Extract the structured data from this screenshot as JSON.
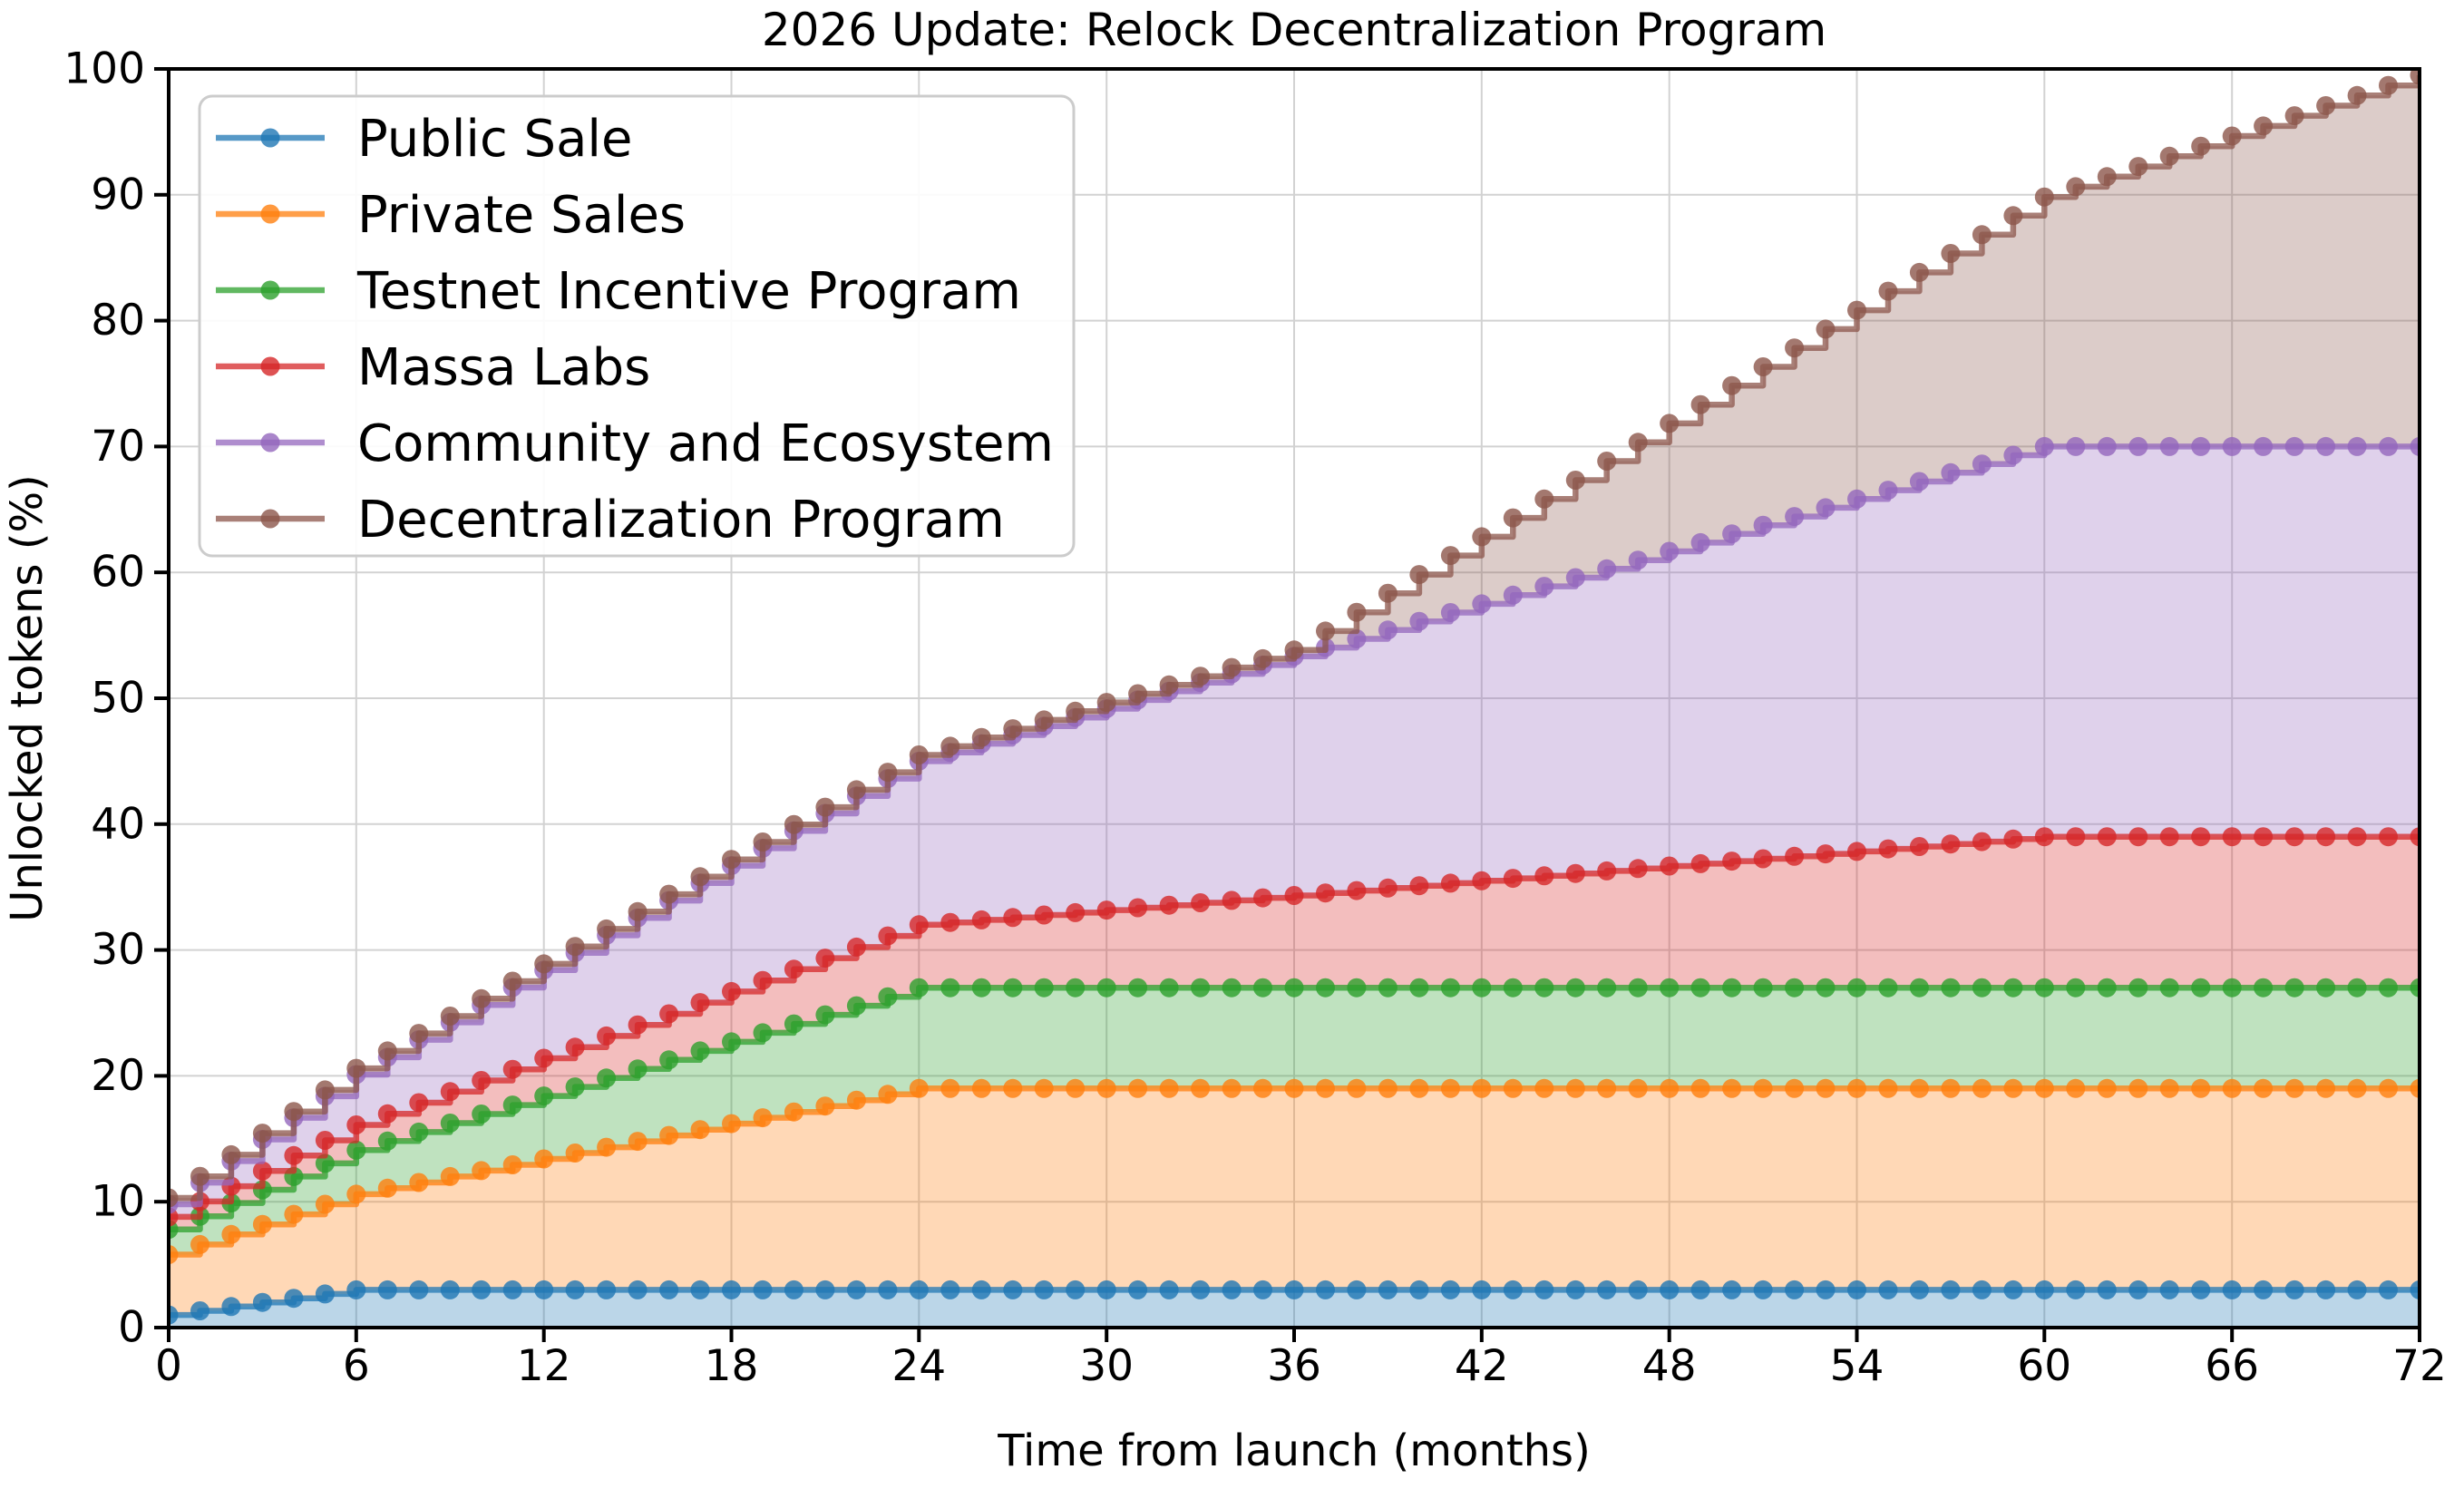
{
  "title": "2026 Update: Relock Decentralization Program",
  "chart_data": {
    "type": "area",
    "stacked": true,
    "step": "post",
    "title": "2026 Update: Relock Decentralization Program",
    "xlabel": "Time from launch (months)",
    "ylabel": "Unlocked tokens (%)",
    "xlim": [
      0,
      72
    ],
    "ylim": [
      0,
      100
    ],
    "xticks": [
      0,
      6,
      12,
      18,
      24,
      30,
      36,
      42,
      48,
      54,
      60,
      66,
      72
    ],
    "yticks": [
      0,
      10,
      20,
      30,
      40,
      50,
      60,
      70,
      80,
      90,
      100
    ],
    "grid": true,
    "legend_position": "upper left",
    "values_note": "cumulative stacked percent of total supply, one step per month",
    "x": [
      0,
      1,
      2,
      3,
      4,
      5,
      6,
      7,
      8,
      9,
      10,
      11,
      12,
      13,
      14,
      15,
      16,
      17,
      18,
      19,
      20,
      21,
      22,
      23,
      24,
      25,
      26,
      27,
      28,
      29,
      30,
      31,
      32,
      33,
      34,
      35,
      36,
      37,
      38,
      39,
      40,
      41,
      42,
      43,
      44,
      45,
      46,
      47,
      48,
      49,
      50,
      51,
      52,
      53,
      54,
      55,
      56,
      57,
      58,
      59,
      60,
      61,
      62,
      63,
      64,
      65,
      66,
      67,
      68,
      69,
      70,
      71,
      72
    ],
    "series": [
      {
        "name": "Public Sale",
        "color": "#1f77b4",
        "cumulative": [
          1.0,
          1.33,
          1.67,
          2.0,
          2.33,
          2.67,
          3.0,
          3.0,
          3.0,
          3.0,
          3.0,
          3.0,
          3.0,
          3.0,
          3.0,
          3.0,
          3.0,
          3.0,
          3.0,
          3.0,
          3.0,
          3.0,
          3.0,
          3.0,
          3.0,
          3.0,
          3.0,
          3.0,
          3.0,
          3.0,
          3.0,
          3.0,
          3.0,
          3.0,
          3.0,
          3.0,
          3.0,
          3.0,
          3.0,
          3.0,
          3.0,
          3.0,
          3.0,
          3.0,
          3.0,
          3.0,
          3.0,
          3.0,
          3.0,
          3.0,
          3.0,
          3.0,
          3.0,
          3.0,
          3.0,
          3.0,
          3.0,
          3.0,
          3.0,
          3.0,
          3.0,
          3.0,
          3.0,
          3.0,
          3.0,
          3.0,
          3.0,
          3.0,
          3.0,
          3.0,
          3.0,
          3.0,
          3.0
        ]
      },
      {
        "name": "Private Sales",
        "color": "#ff7f0e",
        "cumulative": [
          5.8,
          6.6,
          7.4,
          8.2,
          9.0,
          9.8,
          10.6,
          11.07,
          11.53,
          12.0,
          12.47,
          12.93,
          13.4,
          13.87,
          14.33,
          14.8,
          15.27,
          15.73,
          16.2,
          16.67,
          17.13,
          17.6,
          18.07,
          18.53,
          19.0,
          19.0,
          19.0,
          19.0,
          19.0,
          19.0,
          19.0,
          19.0,
          19.0,
          19.0,
          19.0,
          19.0,
          19.0,
          19.0,
          19.0,
          19.0,
          19.0,
          19.0,
          19.0,
          19.0,
          19.0,
          19.0,
          19.0,
          19.0,
          19.0,
          19.0,
          19.0,
          19.0,
          19.0,
          19.0,
          19.0,
          19.0,
          19.0,
          19.0,
          19.0,
          19.0,
          19.0,
          19.0,
          19.0,
          19.0,
          19.0,
          19.0,
          19.0,
          19.0,
          19.0,
          19.0,
          19.0,
          19.0,
          19.0
        ]
      },
      {
        "name": "Testnet Incentive Program",
        "color": "#2ca02c",
        "cumulative": [
          7.8,
          8.85,
          9.9,
          10.95,
          12.0,
          13.05,
          14.1,
          14.82,
          15.53,
          16.25,
          16.97,
          17.68,
          18.4,
          19.12,
          19.83,
          20.55,
          21.27,
          21.98,
          22.7,
          23.42,
          24.13,
          24.85,
          25.57,
          26.28,
          27.0,
          27.0,
          27.0,
          27.0,
          27.0,
          27.0,
          27.0,
          27.0,
          27.0,
          27.0,
          27.0,
          27.0,
          27.0,
          27.0,
          27.0,
          27.0,
          27.0,
          27.0,
          27.0,
          27.0,
          27.0,
          27.0,
          27.0,
          27.0,
          27.0,
          27.0,
          27.0,
          27.0,
          27.0,
          27.0,
          27.0,
          27.0,
          27.0,
          27.0,
          27.0,
          27.0,
          27.0,
          27.0,
          27.0,
          27.0,
          27.0,
          27.0,
          27.0,
          27.0,
          27.0,
          27.0,
          27.0,
          27.0,
          27.0
        ]
      },
      {
        "name": "Massa Labs",
        "color": "#d62728",
        "cumulative": [
          8.8,
          10.02,
          11.23,
          12.45,
          13.67,
          14.88,
          16.1,
          16.98,
          17.87,
          18.75,
          19.63,
          20.52,
          21.4,
          22.28,
          23.17,
          24.05,
          24.93,
          25.82,
          26.7,
          27.58,
          28.47,
          29.35,
          30.23,
          31.12,
          32.0,
          32.19,
          32.39,
          32.58,
          32.78,
          32.97,
          33.17,
          33.36,
          33.56,
          33.75,
          33.94,
          34.14,
          34.33,
          34.53,
          34.72,
          34.92,
          35.11,
          35.31,
          35.5,
          35.69,
          35.89,
          36.08,
          36.28,
          36.47,
          36.67,
          36.86,
          37.06,
          37.25,
          37.44,
          37.64,
          37.83,
          38.03,
          38.22,
          38.42,
          38.61,
          38.81,
          39.0,
          39.0,
          39.0,
          39.0,
          39.0,
          39.0,
          39.0,
          39.0,
          39.0,
          39.0,
          39.0,
          39.0,
          39.0
        ]
      },
      {
        "name": "Community and Ecosystem",
        "color": "#9467bd",
        "cumulative": [
          9.8,
          11.52,
          13.23,
          14.95,
          16.67,
          18.38,
          20.1,
          21.48,
          22.87,
          24.25,
          25.63,
          27.02,
          28.4,
          29.78,
          31.17,
          32.55,
          33.93,
          35.32,
          36.7,
          38.08,
          39.47,
          40.85,
          42.23,
          43.62,
          45.0,
          45.69,
          46.39,
          47.08,
          47.78,
          48.47,
          49.17,
          49.86,
          50.56,
          51.25,
          51.94,
          52.64,
          53.33,
          54.03,
          54.72,
          55.42,
          56.11,
          56.81,
          57.5,
          58.19,
          58.89,
          59.58,
          60.28,
          60.97,
          61.67,
          62.36,
          63.06,
          63.75,
          64.44,
          65.14,
          65.83,
          66.53,
          67.22,
          67.92,
          68.61,
          69.31,
          70.0,
          70.0,
          70.0,
          70.0,
          70.0,
          70.0,
          70.0,
          70.0,
          70.0,
          70.0,
          70.0,
          70.0,
          70.0
        ]
      },
      {
        "name": "Decentralization Program",
        "color": "#8c564b",
        "cumulative": [
          10.3,
          12.02,
          13.73,
          15.45,
          17.17,
          18.88,
          20.6,
          21.98,
          23.37,
          24.75,
          26.13,
          27.52,
          28.9,
          30.28,
          31.67,
          33.05,
          34.43,
          35.82,
          37.2,
          38.58,
          39.97,
          41.35,
          42.73,
          44.12,
          45.5,
          46.19,
          46.89,
          47.58,
          48.28,
          48.97,
          49.67,
          50.36,
          51.06,
          51.75,
          52.44,
          53.14,
          53.83,
          55.34,
          56.83,
          58.34,
          59.83,
          61.34,
          62.83,
          64.33,
          65.83,
          67.33,
          68.84,
          70.33,
          71.84,
          73.33,
          74.84,
          76.33,
          77.83,
          79.33,
          80.83,
          82.34,
          83.83,
          85.34,
          86.83,
          88.34,
          89.83,
          90.64,
          91.44,
          92.25,
          93.06,
          93.86,
          94.67,
          95.47,
          96.28,
          97.08,
          97.89,
          98.69,
          99.5
        ]
      }
    ]
  },
  "styles": {
    "background": "#ffffff",
    "axis_color": "#000000",
    "grid_color": "#d2d2d2",
    "legend_border_color": "#cccccc",
    "legend_background": "#ffffff",
    "fill_opacity": 0.3,
    "line_opacity": 0.75,
    "marker_opacity": 0.8
  }
}
